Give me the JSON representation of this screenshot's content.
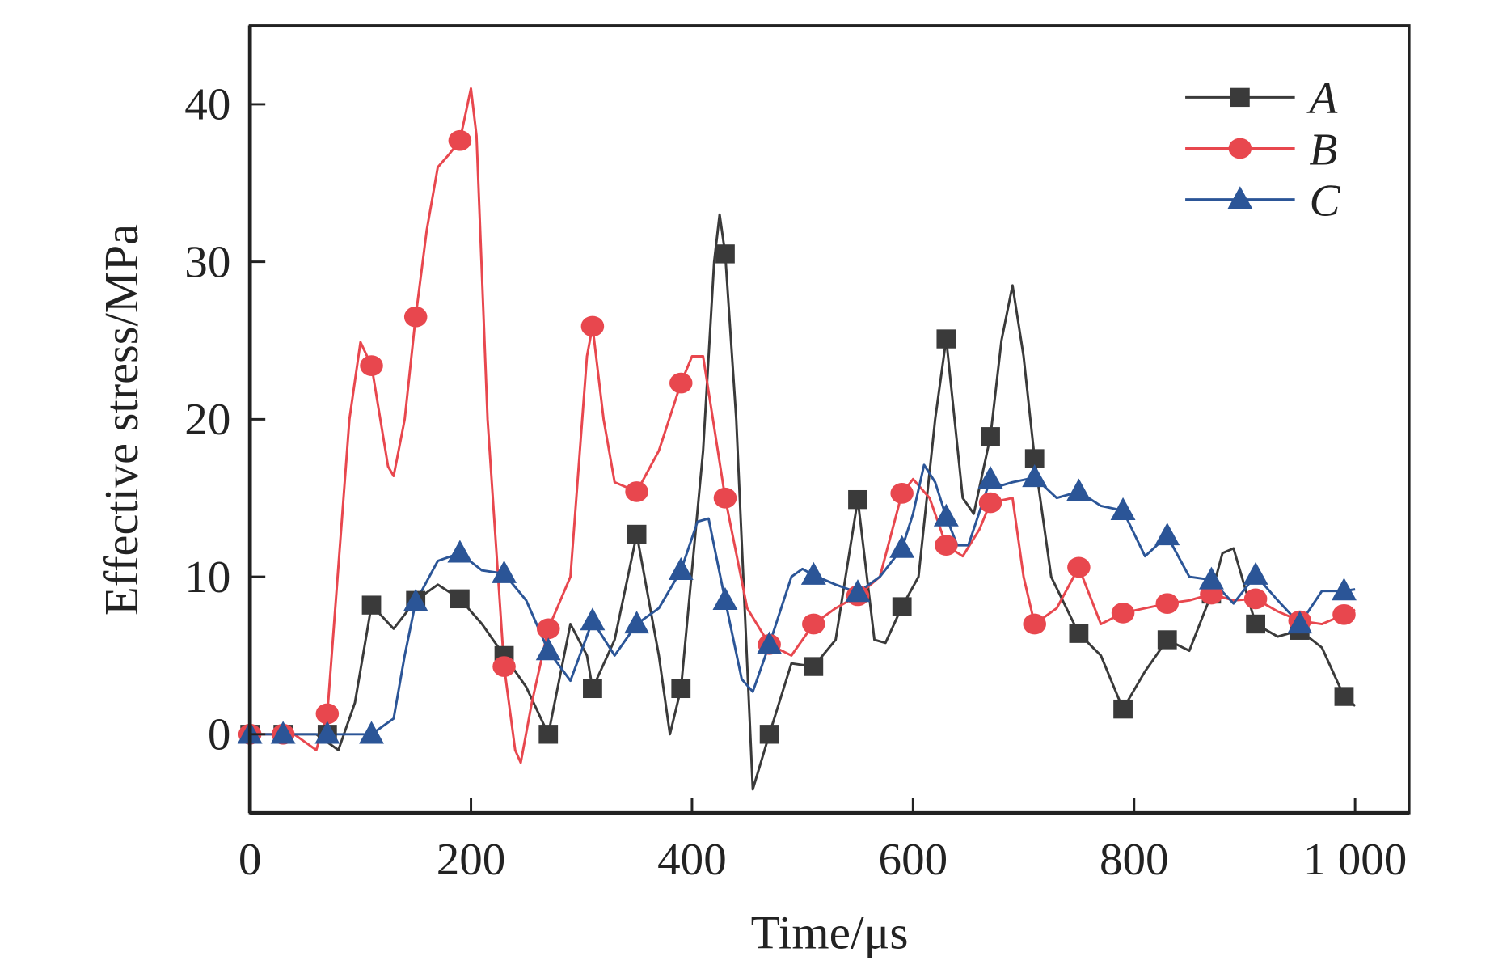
{
  "chart_data": {
    "type": "line",
    "title": "",
    "xlabel": "Time/μs",
    "ylabel": "Effective stress/MPa",
    "xlim": [
      0,
      1049
    ],
    "ylim": [
      -5,
      45
    ],
    "xticks": [
      0,
      200,
      400,
      600,
      800,
      1000
    ],
    "xtick_labels": [
      "0",
      "200",
      "400",
      "600",
      "800",
      "1 000"
    ],
    "yticks": [
      0,
      10,
      20,
      30,
      40
    ],
    "ytick_labels": [
      "0",
      "10",
      "20",
      "30",
      "40"
    ],
    "grid": false,
    "legend_position": "top-right",
    "series": [
      {
        "name": "A",
        "color": "#3a3a3a",
        "marker": "square",
        "marker_x": [
          0,
          30,
          70,
          110,
          150,
          190,
          230,
          270,
          310,
          350,
          390,
          430,
          470,
          510,
          550,
          590,
          630,
          670,
          710,
          750,
          790,
          830,
          870,
          910,
          950,
          990
        ],
        "marker_y": [
          0,
          0,
          0,
          8.2,
          8.5,
          8.6,
          5,
          0,
          2.9,
          12.7,
          2.9,
          30.5,
          0,
          4.3,
          14.9,
          8.1,
          25.1,
          18.9,
          17.5,
          6.4,
          1.6,
          6.0,
          8.9,
          7.0,
          6.6,
          2.4
        ],
        "x": [
          0,
          60,
          80,
          95,
          110,
          130,
          150,
          170,
          190,
          210,
          230,
          250,
          270,
          290,
          305,
          310,
          330,
          350,
          370,
          380,
          390,
          410,
          420,
          425,
          430,
          440,
          455,
          470,
          490,
          510,
          530,
          550,
          565,
          575,
          590,
          605,
          620,
          630,
          645,
          655,
          670,
          680,
          690,
          700,
          710,
          725,
          750,
          770,
          790,
          810,
          830,
          850,
          870,
          880,
          890,
          910,
          930,
          950,
          970,
          990,
          1000
        ],
        "y": [
          0,
          0,
          -1,
          2,
          8.2,
          6.7,
          8.5,
          9.5,
          8.6,
          7,
          5,
          3,
          0,
          7,
          5,
          2.9,
          6,
          12.7,
          5,
          0,
          2.9,
          18,
          30,
          33,
          30.5,
          20,
          -3.5,
          0,
          4.5,
          4.3,
          6,
          14.9,
          6,
          5.8,
          8.1,
          10,
          20,
          25.1,
          15,
          14,
          18.9,
          25,
          28.5,
          24,
          17.5,
          10,
          6.4,
          5,
          1.6,
          4,
          6.0,
          5.3,
          8.9,
          11.5,
          11.8,
          7.0,
          6.2,
          6.6,
          5.5,
          2.4,
          1.8
        ]
      },
      {
        "name": "B",
        "color": "#e8474e",
        "marker": "circle",
        "marker_x": [
          0,
          30,
          70,
          110,
          150,
          190,
          230,
          270,
          310,
          350,
          390,
          430,
          470,
          510,
          550,
          590,
          630,
          670,
          710,
          750,
          790,
          830,
          870,
          910,
          950,
          990
        ],
        "marker_y": [
          0,
          0,
          1.3,
          23.4,
          26.5,
          37.7,
          4.3,
          6.7,
          25.9,
          15.4,
          22.3,
          15.0,
          5.7,
          7.0,
          8.8,
          15.3,
          12.0,
          14.7,
          7.0,
          10.6,
          7.7,
          8.3,
          8.9,
          8.6,
          7.2,
          7.6
        ],
        "x": [
          0,
          40,
          60,
          70,
          90,
          100,
          110,
          125,
          130,
          140,
          150,
          160,
          170,
          180,
          190,
          200,
          205,
          215,
          230,
          240,
          245,
          255,
          270,
          290,
          305,
          310,
          320,
          330,
          350,
          370,
          390,
          400,
          410,
          430,
          450,
          470,
          490,
          510,
          530,
          550,
          570,
          590,
          600,
          615,
          630,
          645,
          660,
          670,
          690,
          700,
          710,
          730,
          750,
          770,
          790,
          810,
          830,
          850,
          870,
          890,
          910,
          930,
          950,
          970,
          990,
          1000
        ],
        "y": [
          0,
          0,
          -1,
          1.3,
          20,
          24.9,
          23.4,
          17,
          16.4,
          20,
          26.5,
          32,
          36,
          36.8,
          37.7,
          41,
          38,
          20,
          4.3,
          -1,
          -1.8,
          2,
          6.7,
          10,
          24,
          25.9,
          20,
          16,
          15.4,
          18,
          22.3,
          24,
          24,
          15.0,
          8,
          5.7,
          5,
          7.0,
          8,
          8.8,
          10,
          15.3,
          16.2,
          15,
          12.0,
          11.3,
          13,
          14.7,
          15,
          10,
          7.0,
          8,
          10.6,
          7,
          7.7,
          8,
          8.3,
          8.5,
          8.9,
          8.5,
          8.6,
          7.8,
          7.2,
          7,
          7.6,
          7.9
        ]
      },
      {
        "name": "C",
        "color": "#2b5597",
        "marker": "triangle",
        "marker_x": [
          0,
          30,
          70,
          110,
          150,
          190,
          230,
          270,
          310,
          350,
          390,
          430,
          470,
          510,
          550,
          590,
          630,
          670,
          710,
          750,
          790,
          830,
          870,
          910,
          950,
          990
        ],
        "marker_y": [
          0,
          0,
          0,
          0,
          8.4,
          11.5,
          10.2,
          5.3,
          7.2,
          7.0,
          10.4,
          8.5,
          5.7,
          10.1,
          9.0,
          11.8,
          13.8,
          16.2,
          16.3,
          15.4,
          14.2,
          12.6,
          9.8,
          10.1,
          7.0,
          9.1
        ],
        "x": [
          0,
          110,
          130,
          140,
          150,
          170,
          190,
          210,
          230,
          250,
          270,
          290,
          310,
          330,
          350,
          370,
          390,
          405,
          415,
          430,
          445,
          455,
          470,
          490,
          500,
          510,
          530,
          550,
          570,
          590,
          600,
          610,
          620,
          630,
          640,
          650,
          670,
          680,
          690,
          710,
          730,
          750,
          770,
          790,
          810,
          830,
          850,
          870,
          890,
          910,
          930,
          950,
          970,
          990,
          1000
        ],
        "y": [
          0,
          0,
          1,
          5,
          8.4,
          11,
          11.5,
          10.4,
          10.2,
          8.5,
          5.3,
          3.4,
          7.2,
          5,
          7.0,
          8,
          10.4,
          13.5,
          13.7,
          8.5,
          3.5,
          2.7,
          5.7,
          10,
          10.5,
          10.1,
          9.5,
          9.0,
          10,
          11.8,
          14,
          17.1,
          16,
          13.8,
          12,
          12,
          16.2,
          15.8,
          16,
          16.3,
          15,
          15.4,
          14.5,
          14.2,
          11.3,
          12.6,
          10,
          9.8,
          8.3,
          10.1,
          8.5,
          7.0,
          9.1,
          9.1,
          9.2
        ]
      }
    ]
  }
}
